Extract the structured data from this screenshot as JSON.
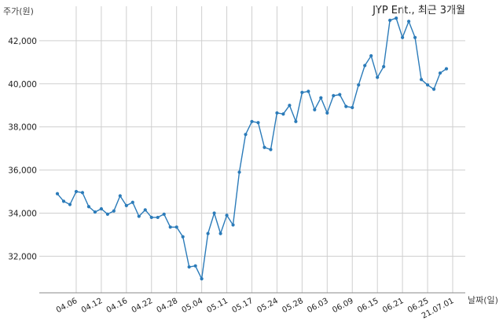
{
  "chart_data": {
    "type": "line",
    "title": "JYP Ent., 최근 3개월",
    "ylabel": "주가(원)",
    "xlabel": "날짜(일)",
    "ylim": [
      30300,
      43600
    ],
    "grid": true,
    "line_color": "#2b7bb9",
    "ticks_x": [
      "04.06",
      "04.12",
      "04.16",
      "04.22",
      "04.28",
      "05.04",
      "05.11",
      "05.17",
      "05.24",
      "05.28",
      "06.03",
      "06.09",
      "06.15",
      "06.21",
      "06.25",
      "21.07.01"
    ],
    "tick_indices": [
      3,
      7,
      11,
      15,
      19,
      23,
      27,
      31,
      35,
      39,
      43,
      47,
      51,
      55,
      59,
      63
    ],
    "ticks_y": [
      32000,
      34000,
      36000,
      38000,
      40000,
      42000
    ],
    "ytick_labels": [
      "32,000",
      "34,000",
      "36,000",
      "38,000",
      "40,000",
      "42,000"
    ],
    "series": [
      {
        "values": [
          34900,
          34550,
          34400,
          35000,
          34950,
          34300,
          34050,
          34200,
          33950,
          34100,
          34800,
          34350,
          34500,
          33850,
          34150,
          33800,
          33800,
          33950,
          33350,
          33350,
          32900,
          31500,
          31550,
          30950,
          33050,
          34000,
          33050,
          33900,
          33450,
          35900,
          37650,
          38250,
          38200,
          37050,
          36950,
          38650,
          38600,
          39000,
          38250,
          39600,
          39650,
          38800,
          39350,
          38650,
          39450,
          39500,
          38950,
          38900,
          39950,
          40850,
          41300,
          40300,
          40800,
          42950,
          43050,
          42150,
          42900,
          42150,
          40200,
          39950,
          39750,
          40500,
          40700
        ]
      }
    ]
  }
}
